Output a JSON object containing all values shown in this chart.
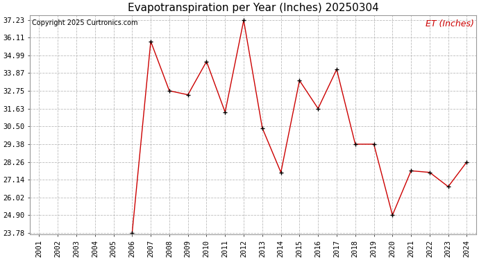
{
  "title": "Evapotranspiration per Year (Inches) 20250304",
  "copyright": "Copyright 2025 Curtronics.com",
  "legend_label": "ET (Inches)",
  "years": [
    2001,
    2002,
    2003,
    2004,
    2005,
    2006,
    2007,
    2008,
    2009,
    2010,
    2011,
    2012,
    2013,
    2014,
    2015,
    2016,
    2017,
    2018,
    2019,
    2020,
    2021,
    2022,
    2023,
    2024
  ],
  "values": [
    null,
    null,
    null,
    null,
    null,
    23.78,
    35.87,
    32.75,
    32.5,
    34.6,
    31.4,
    37.2,
    30.4,
    27.6,
    33.4,
    31.63,
    34.1,
    29.38,
    29.38,
    24.9,
    27.7,
    27.6,
    26.7,
    28.26
  ],
  "ylim_min": 23.78,
  "ylim_max": 37.23,
  "yticks": [
    37.23,
    36.11,
    34.99,
    33.87,
    32.75,
    31.63,
    30.5,
    29.38,
    28.26,
    27.14,
    26.02,
    24.9,
    23.78
  ],
  "line_color": "#cc0000",
  "marker_color": "#000000",
  "grid_color": "#bbbbbb",
  "bg_color": "#ffffff",
  "title_fontsize": 11,
  "copyright_fontsize": 7,
  "legend_fontsize": 9,
  "tick_fontsize": 7.5
}
